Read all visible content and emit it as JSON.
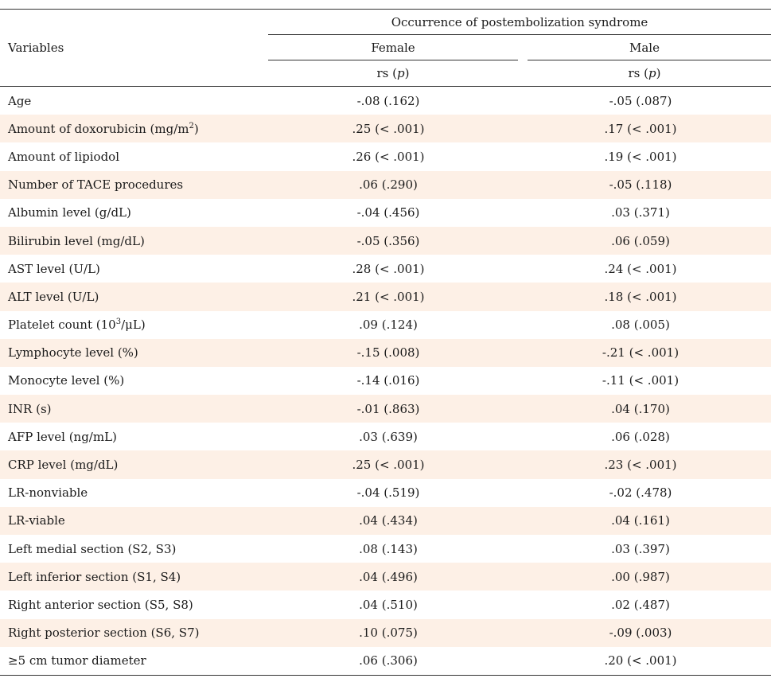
{
  "header": {
    "variables": "Variables",
    "group_title": "Occurrence of postembolization syndrome",
    "female": "Female",
    "male": "Male",
    "stat_female": "rs",
    "stat_female_p": "p",
    "stat_male": "rs",
    "stat_male_p": "p"
  },
  "rows": [
    {
      "label": "Age",
      "female": "-.08 (.162)",
      "male": "-.05 (.087)"
    },
    {
      "label": "Amount of doxorubicin (mg/m",
      "sup": "2",
      "label_end": ")",
      "female": ".25 (< .001)",
      "male": ".17 (< .001)"
    },
    {
      "label": "Amount of lipiodol",
      "female": ".26 (< .001)",
      "male": ".19 (< .001)"
    },
    {
      "label": "Number of TACE procedures",
      "female": ".06 (.290)",
      "male": "-.05 (.118)"
    },
    {
      "label": "Albumin level (g/dL)",
      "female": "-.04 (.456)",
      "male": ".03 (.371)"
    },
    {
      "label": "Bilirubin level (mg/dL)",
      "female": "-.05 (.356)",
      "male": ".06 (.059)"
    },
    {
      "label": "AST level (U/L)",
      "female": ".28 (< .001)",
      "male": ".24 (< .001)"
    },
    {
      "label": "ALT level (U/L)",
      "female": ".21 (< .001)",
      "male": ".18 (< .001)"
    },
    {
      "label": "Platelet count (10",
      "sup": "3",
      "label_end": "/μL)",
      "female": ".09 (.124)",
      "male": ".08 (.005)"
    },
    {
      "label": "Lymphocyte level (%)",
      "female": "-.15 (.008)",
      "male": "-.21 (< .001)"
    },
    {
      "label": "Monocyte level (%)",
      "female": "-.14 (.016)",
      "male": "-.11 (< .001)"
    },
    {
      "label": "INR (s)",
      "female": "-.01 (.863)",
      "male": ".04 (.170)"
    },
    {
      "label": "AFP level (ng/mL)",
      "female": ".03 (.639)",
      "male": ".06 (.028)"
    },
    {
      "label": "CRP level (mg/dL)",
      "female": ".25 (< .001)",
      "male": ".23 (< .001)"
    },
    {
      "label": "LR-nonviable",
      "female": "-.04 (.519)",
      "male": "-.02 (.478)"
    },
    {
      "label": "LR-viable",
      "female": ".04 (.434)",
      "male": ".04 (.161)"
    },
    {
      "label": "Left medial section (S2, S3)",
      "female": ".08 (.143)",
      "male": ".03 (.397)"
    },
    {
      "label": "Left inferior section (S1, S4)",
      "female": ".04 (.496)",
      "male": ".00 (.987)"
    },
    {
      "label": "Right anterior section (S5, S8)",
      "female": ".04 (.510)",
      "male": ".02 (.487)"
    },
    {
      "label": "Right posterior section (S6, S7)",
      "female": ".10 (.075)",
      "male": "-.09 (.003)"
    },
    {
      "label": "≥5 cm tumor diameter",
      "female": ".06 (.306)",
      "male": ".20 (< .001)"
    }
  ]
}
